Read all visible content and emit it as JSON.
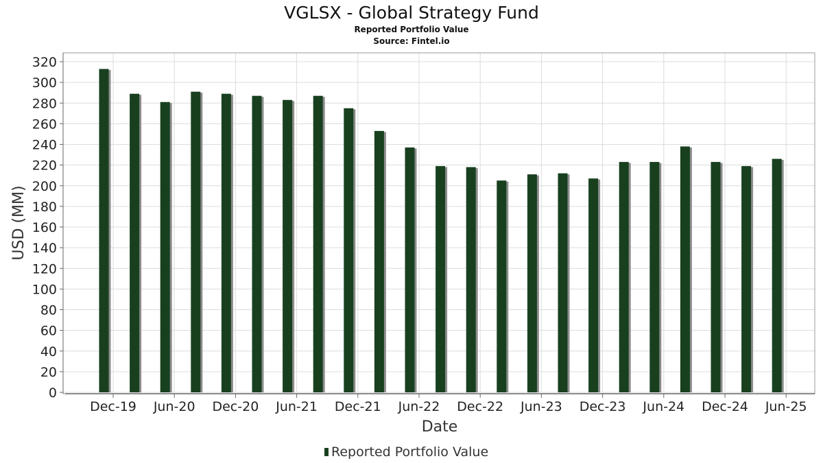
{
  "chart_data": {
    "type": "bar",
    "title": "VGLSX - Global Strategy Fund",
    "subtitle": "Reported Portfolio Value",
    "source": "Source: Fintel.io",
    "xlabel": "Date",
    "ylabel": "USD (MM)",
    "ylim": [
      0,
      320
    ],
    "yticks": [
      0,
      20,
      40,
      60,
      80,
      100,
      120,
      140,
      160,
      180,
      200,
      220,
      240,
      260,
      280,
      300,
      320
    ],
    "xticks": [
      "Dec-19",
      "Jun-20",
      "Dec-20",
      "Jun-21",
      "Dec-21",
      "Jun-22",
      "Dec-22",
      "Jun-23",
      "Dec-23",
      "Jun-24",
      "Dec-24",
      "Jun-25"
    ],
    "grid": true,
    "legend_position": "bottom",
    "series": [
      {
        "name": "Reported Portfolio Value",
        "color": "#18401f",
        "values": [
          313,
          289,
          281,
          291,
          289,
          287,
          283,
          287,
          275,
          253,
          237,
          219,
          218,
          205,
          211,
          212,
          207,
          223,
          223,
          238,
          223,
          219,
          226
        ]
      }
    ]
  }
}
